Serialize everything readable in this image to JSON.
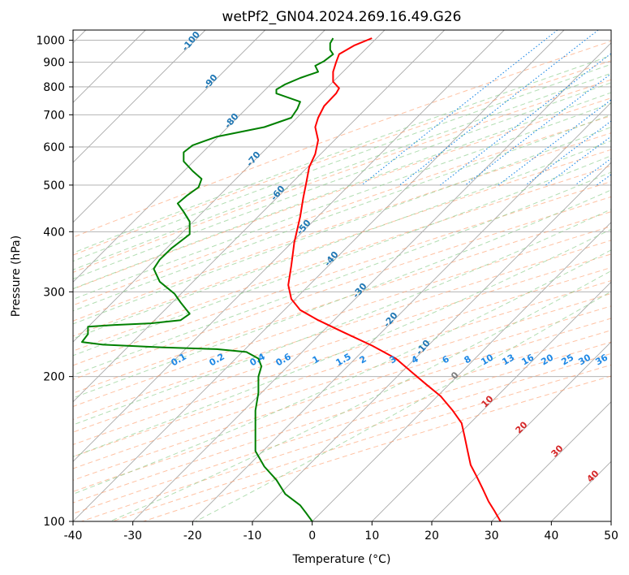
{
  "chart_data": {
    "type": "line",
    "title": "wetPf2_GN04.2024.269.16.49.G26",
    "xlabel": "Temperature (°C)",
    "ylabel": "Pressure (hPa)",
    "xlim": [
      -40,
      50
    ],
    "ylim": [
      1050,
      100
    ],
    "y_scale": "log",
    "grid": true,
    "x_ticks": [
      -40,
      -30,
      -20,
      -10,
      0,
      10,
      20,
      30,
      40,
      50
    ],
    "y_ticks": [
      1000,
      900,
      800,
      700,
      600,
      500,
      400,
      300,
      200,
      100
    ],
    "colors": {
      "temperature": "#ff0000",
      "dewpoint": "#008000",
      "isotherm": "#a9a9a9",
      "dry_adiabat": "#ff9966",
      "moist_adiabat": "#88cc88",
      "mixing_ratio": "#1e88e5",
      "label_blue": "#1f77b4",
      "label_red": "#d62728",
      "label_gray": "#7f7f7f"
    },
    "series": [
      {
        "key": "temperature",
        "points": [
          [
            10.0,
            1010
          ],
          [
            7.0,
            975
          ],
          [
            4.5,
            935
          ],
          [
            4.0,
            900
          ],
          [
            3.5,
            860
          ],
          [
            3.5,
            820
          ],
          [
            4.5,
            795
          ],
          [
            4.0,
            775
          ],
          [
            2.0,
            730
          ],
          [
            1.0,
            690
          ],
          [
            0.5,
            660
          ],
          [
            1.0,
            620
          ],
          [
            0.5,
            580
          ],
          [
            -0.5,
            545
          ],
          [
            -1.0,
            505
          ],
          [
            -1.5,
            470
          ],
          [
            -2.0,
            430
          ],
          [
            -3.0,
            380
          ],
          [
            -3.5,
            340
          ],
          [
            -4.0,
            310
          ],
          [
            -3.5,
            290
          ],
          [
            -2.0,
            275
          ],
          [
            1.0,
            262
          ],
          [
            5.0,
            248
          ],
          [
            10.0,
            232
          ],
          [
            14.0,
            218
          ],
          [
            16.5,
            205
          ],
          [
            19.0,
            193
          ],
          [
            21.5,
            182
          ],
          [
            23.5,
            170
          ],
          [
            25.0,
            160
          ],
          [
            25.5,
            150
          ],
          [
            26.0,
            140
          ],
          [
            26.5,
            131
          ],
          [
            27.5,
            124
          ],
          [
            28.5,
            117
          ],
          [
            29.5,
            110
          ],
          [
            30.5,
            105
          ],
          [
            31.5,
            100
          ]
        ]
      },
      {
        "key": "dewpoint",
        "points": [
          [
            3.5,
            1010
          ],
          [
            3.0,
            985
          ],
          [
            3.0,
            955
          ],
          [
            3.5,
            935
          ],
          [
            2.0,
            905
          ],
          [
            0.5,
            885
          ],
          [
            1.0,
            860
          ],
          [
            -2.0,
            835
          ],
          [
            -4.5,
            810
          ],
          [
            -6.0,
            790
          ],
          [
            -6.0,
            775
          ],
          [
            -4.0,
            760
          ],
          [
            -2.0,
            745
          ],
          [
            -2.5,
            720
          ],
          [
            -3.5,
            690
          ],
          [
            -8.0,
            660
          ],
          [
            -16.0,
            630
          ],
          [
            -20.0,
            605
          ],
          [
            -21.5,
            585
          ],
          [
            -21.5,
            560
          ],
          [
            -20.0,
            535
          ],
          [
            -18.5,
            515
          ],
          [
            -19.0,
            495
          ],
          [
            -21.0,
            475
          ],
          [
            -22.5,
            458
          ],
          [
            -21.5,
            440
          ],
          [
            -20.5,
            420
          ],
          [
            -20.5,
            395
          ],
          [
            -23.5,
            370
          ],
          [
            -25.5,
            350
          ],
          [
            -26.5,
            335
          ],
          [
            -25.5,
            315
          ],
          [
            -23.0,
            297
          ],
          [
            -22.0,
            285
          ],
          [
            -20.5,
            270
          ],
          [
            -22.0,
            262
          ],
          [
            -27.0,
            258
          ],
          [
            -33.0,
            256
          ],
          [
            -37.5,
            254
          ],
          [
            -37.5,
            245
          ],
          [
            -38.5,
            236
          ],
          [
            -35.0,
            233
          ],
          [
            -25.0,
            230
          ],
          [
            -16.0,
            228
          ],
          [
            -11.0,
            225
          ],
          [
            -9.0,
            218
          ],
          [
            -8.5,
            210
          ],
          [
            -9.0,
            200
          ],
          [
            -9.0,
            185
          ],
          [
            -9.5,
            170
          ],
          [
            -9.5,
            155
          ],
          [
            -9.5,
            140
          ],
          [
            -8.0,
            130
          ],
          [
            -6.0,
            122
          ],
          [
            -4.5,
            114
          ],
          [
            -2.0,
            108
          ],
          [
            -1.0,
            104
          ],
          [
            0.0,
            100
          ]
        ]
      }
    ],
    "dry_adiabat_labels": [
      "-100",
      "-90",
      "-80",
      "-70",
      "-60",
      "-50",
      "-40",
      "-30",
      "-20",
      "-10"
    ],
    "moist_adiabat_labels": [
      "0",
      "10",
      "20",
      "30",
      "40"
    ],
    "mixing_ratio_labels": [
      "0.1",
      "0.2",
      "0.4",
      "0.6",
      "1",
      "1.5",
      "2",
      "3",
      "4",
      "6",
      "8",
      "10",
      "13",
      "16",
      "20",
      "25",
      "30",
      "36"
    ]
  }
}
